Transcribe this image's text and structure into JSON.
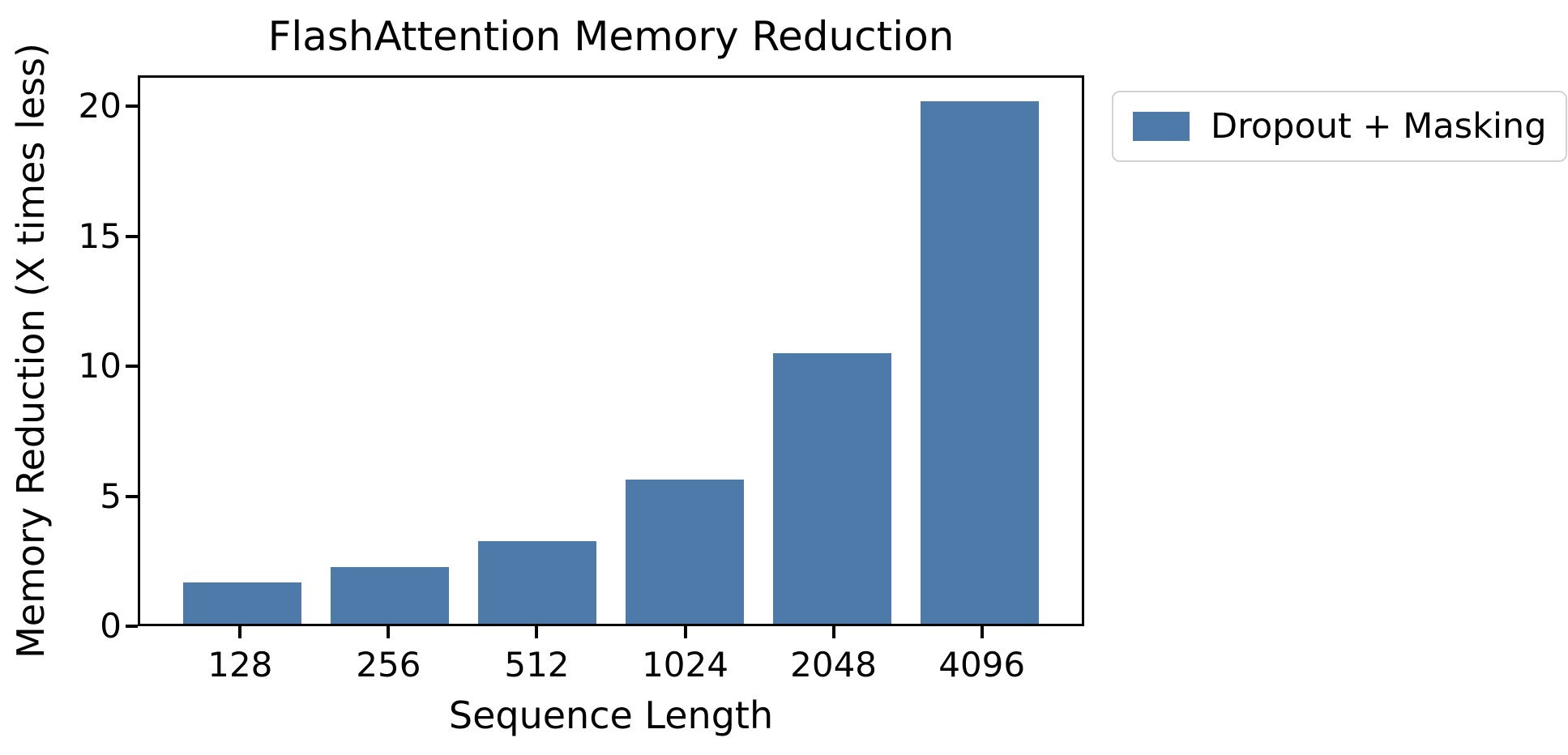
{
  "figure": {
    "title": "FlashAttention Memory Reduction",
    "xlabel": "Sequence Length",
    "ylabel": "Memory Reduction (X times less)"
  },
  "legend": {
    "items": [
      {
        "label": "Dropout + Masking",
        "color": "#4d7aa8"
      }
    ]
  },
  "chart_data": {
    "type": "bar",
    "title": "FlashAttention Memory Reduction",
    "xlabel": "Sequence Length",
    "ylabel": "Memory Reduction (X times less)",
    "categories": [
      "128",
      "256",
      "512",
      "1024",
      "2048",
      "4096"
    ],
    "series": [
      {
        "name": "Dropout + Masking",
        "values": [
          1.6,
          2.2,
          3.2,
          5.6,
          10.5,
          20.3
        ],
        "color": "#4d7aa8"
      }
    ],
    "yticks": [
      0,
      5,
      10,
      15,
      20
    ],
    "ylim": [
      0,
      21.2
    ],
    "grid": false,
    "legend_position": "outside-upper-right",
    "axis_color": "#000000",
    "background_color": "#ffffff"
  }
}
